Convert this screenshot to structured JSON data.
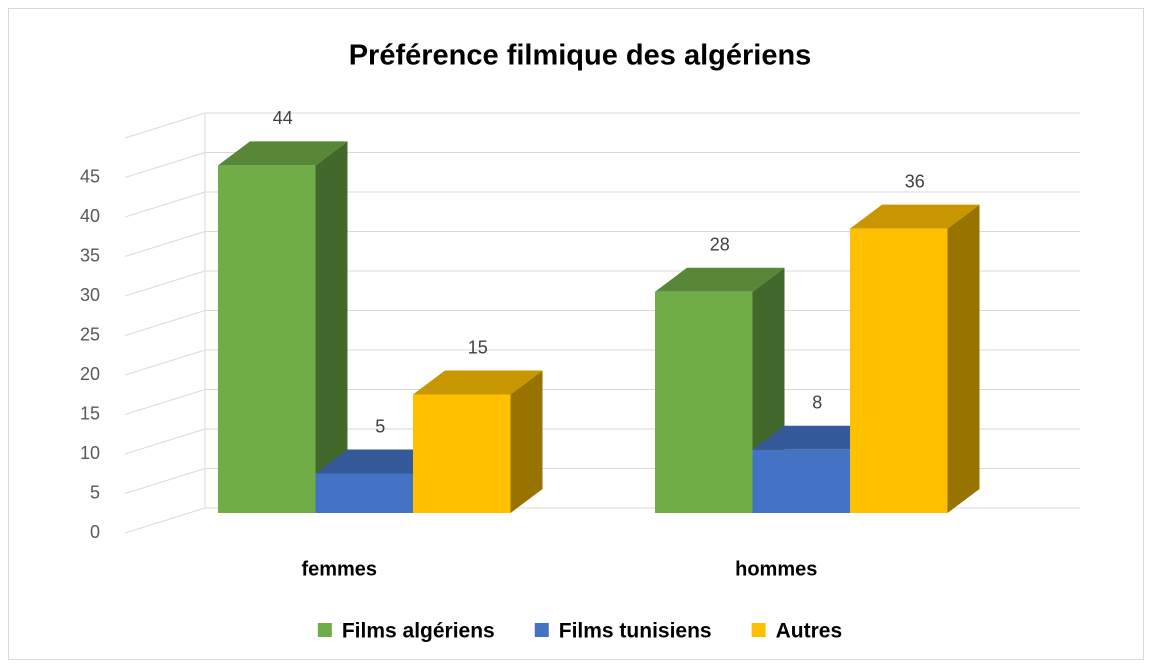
{
  "chart_data": {
    "type": "bar3d",
    "title": "Préférence filmique des algériens",
    "categories": [
      "femmes",
      "hommes"
    ],
    "series": [
      {
        "name": "Films algériens",
        "color": "#70ad47",
        "values": [
          44,
          28
        ]
      },
      {
        "name": "Films tunisiens",
        "color": "#4472c4",
        "values": [
          5,
          8
        ]
      },
      {
        "name": "Autres",
        "color": "#ffc000",
        "values": [
          15,
          36
        ]
      }
    ],
    "ylim": [
      0,
      50
    ],
    "yticks": [
      0,
      5,
      10,
      15,
      20,
      25,
      30,
      35,
      40,
      45
    ],
    "grid": true,
    "legend": "bottom"
  }
}
